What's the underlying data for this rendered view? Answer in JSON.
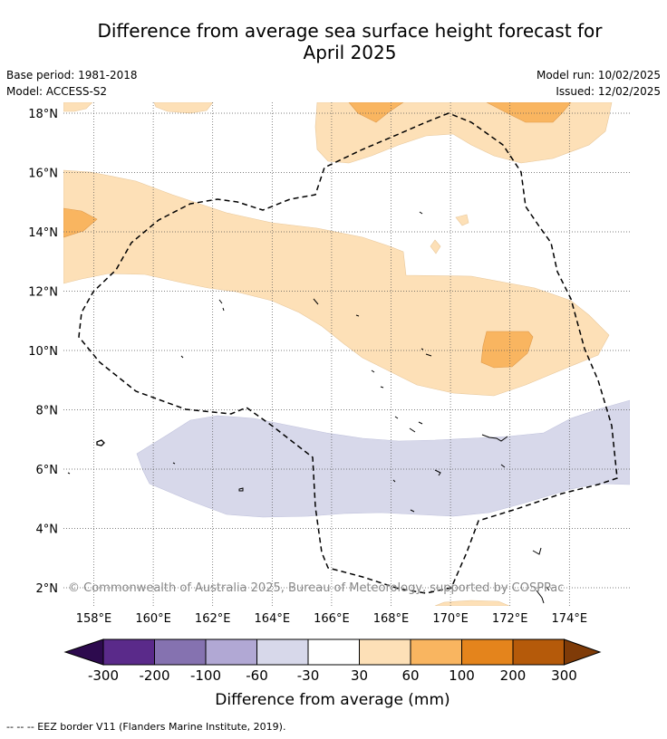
{
  "title": {
    "line1": "Difference from average sea surface height forecast for",
    "line2": "April 2025"
  },
  "meta": {
    "base_period": "Base period: 1981-2018",
    "model": "Model: ACCESS-S2",
    "model_run": "Model run: 10/02/2025",
    "issued": "Issued: 12/02/2025"
  },
  "map": {
    "lon_range": [
      157,
      176
    ],
    "lat_range": [
      1.5,
      18.3
    ],
    "lon_ticks": [
      "158°E",
      "160°E",
      "162°E",
      "164°E",
      "166°E",
      "168°E",
      "170°E",
      "172°E",
      "174°E"
    ],
    "lat_ticks": [
      "2°N",
      "4°N",
      "6°N",
      "8°N",
      "10°N",
      "12°N",
      "14°N",
      "16°N",
      "18°N"
    ],
    "grid": true,
    "copyright": "© Commonwealth of Australia 2025, Bureau of Meteorology, supported by COSPPac"
  },
  "colorbar": {
    "tick_labels": [
      "-300",
      "-200",
      "-100",
      "-60",
      "-30",
      "30",
      "60",
      "100",
      "200",
      "300"
    ],
    "colors": [
      "#5a2a8a",
      "#8572b0",
      "#b1a8d4",
      "#d7d8ea",
      "#ffffff",
      "#fde0b7",
      "#f9b560",
      "#e4841c",
      "#b55a0a"
    ],
    "under_color": "#2d0a4e",
    "over_color": "#7f3b08",
    "label": "Difference from average (mm)"
  },
  "legend": {
    "eez_line": "--  --  -- EEZ border V11 (Flanders Marine Institute, 2019)."
  }
}
